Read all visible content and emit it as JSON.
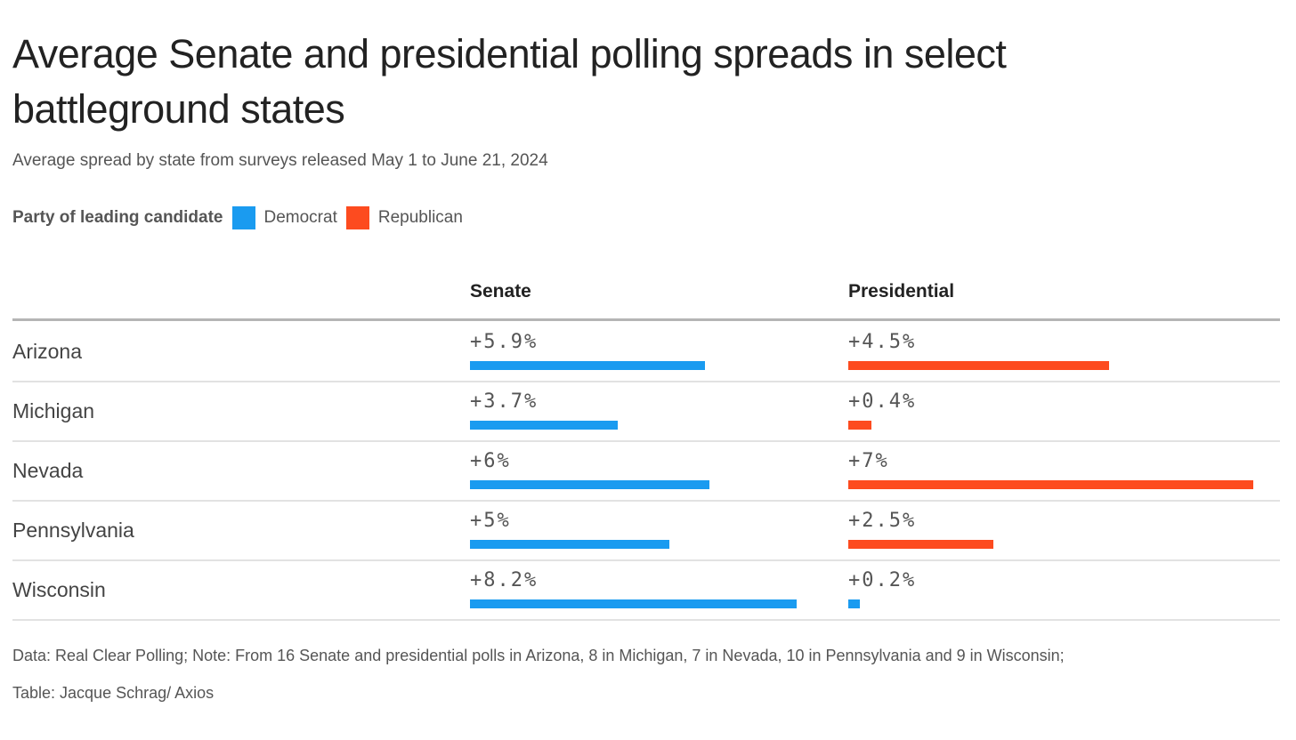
{
  "colors": {
    "democrat": "#1a9bf0",
    "republican": "#fd4b1f"
  },
  "chart_data": {
    "type": "table",
    "title": "Average Senate and presidential polling spreads in select battleground states",
    "subtitle": "Average spread by state from surveys released May 1 to June 21, 2024",
    "legend": {
      "title": "Party of leading candidate",
      "entries": [
        {
          "label": "Democrat",
          "party": "democrat"
        },
        {
          "label": "Republican",
          "party": "republican"
        }
      ],
      "placement": "top-left"
    },
    "columns": [
      "Senate",
      "Presidential"
    ],
    "rows": [
      {
        "state": "Arizona",
        "senate": {
          "value": 5.9,
          "label": "+5.9%",
          "party": "democrat"
        },
        "presidential": {
          "value": 4.5,
          "label": "+4.5%",
          "party": "republican"
        }
      },
      {
        "state": "Michigan",
        "senate": {
          "value": 3.7,
          "label": "+3.7%",
          "party": "democrat"
        },
        "presidential": {
          "value": 0.4,
          "label": "+0.4%",
          "party": "republican"
        }
      },
      {
        "state": "Nevada",
        "senate": {
          "value": 6,
          "label": "+6%",
          "party": "democrat"
        },
        "presidential": {
          "value": 7,
          "label": "+7%",
          "party": "republican"
        }
      },
      {
        "state": "Pennsylvania",
        "senate": {
          "value": 5,
          "label": "+5%",
          "party": "democrat"
        },
        "presidential": {
          "value": 2.5,
          "label": "+2.5%",
          "party": "republican"
        }
      },
      {
        "state": "Wisconsin",
        "senate": {
          "value": 8.2,
          "label": "+8.2%",
          "party": "democrat"
        },
        "presidential": {
          "value": 0.2,
          "label": "+0.2%",
          "party": "democrat"
        }
      }
    ],
    "footer": {
      "note": "Data: Real Clear Polling; Note: From 16 Senate and presidential polls in Arizona, 8 in Michigan, 7 in Nevada, 10 in Pennsylvania and 9 in Wisconsin;",
      "credit": "Table: Jacque Schrag/ Axios"
    }
  }
}
